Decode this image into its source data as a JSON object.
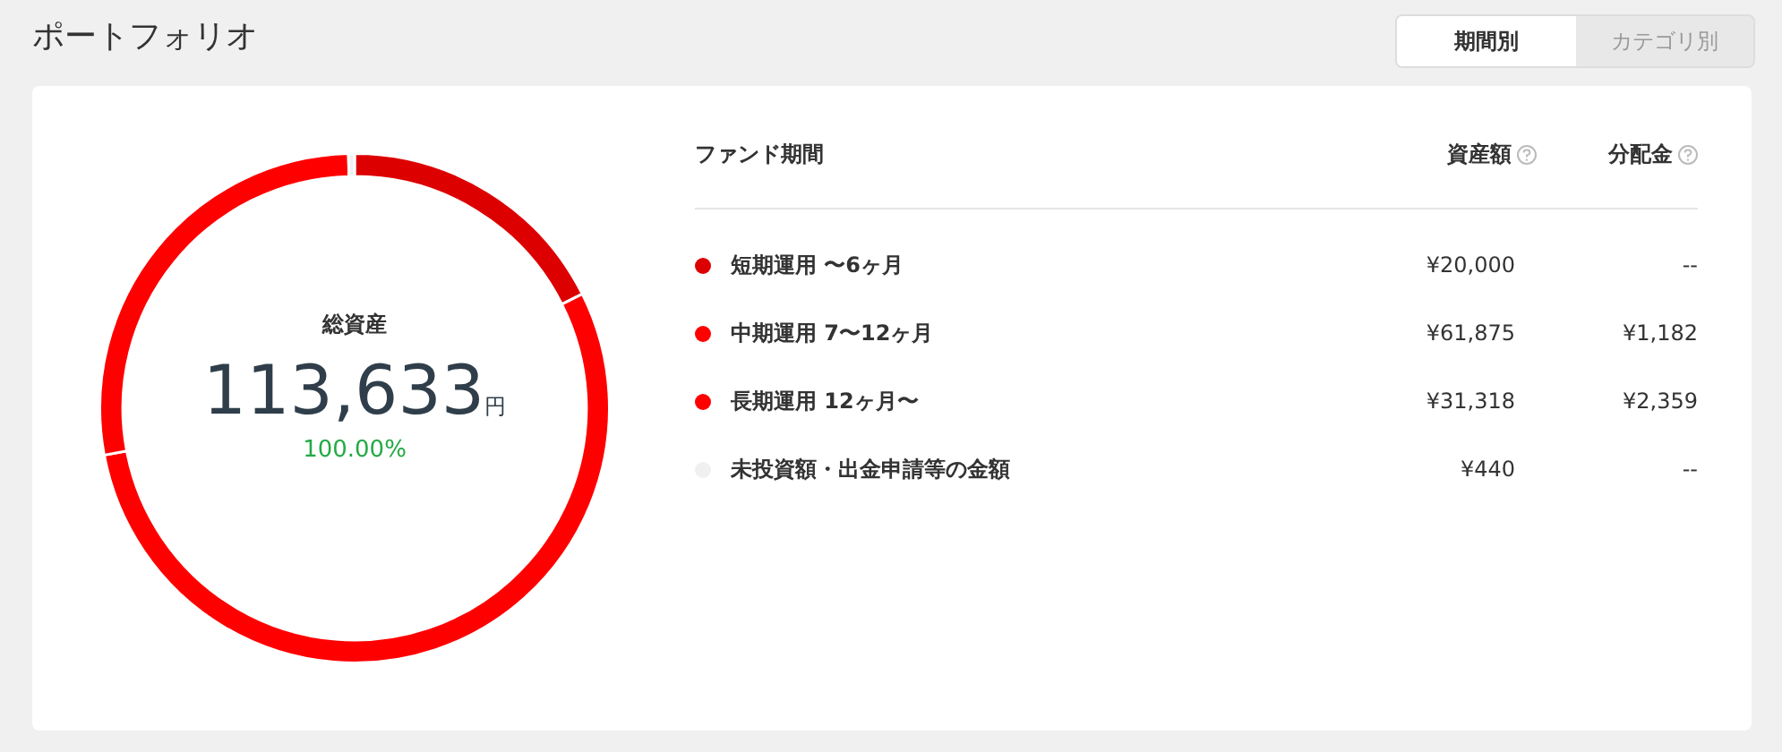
{
  "chart_data": {
    "type": "donut",
    "title": "ポートフォリオ",
    "legend_title": "ファンド期間",
    "categories": [
      "短期運用 〜6ヶ月",
      "中期運用 7〜12ヶ月",
      "長期運用 12ヶ月〜",
      "未投資額・出金申請等の金額"
    ],
    "values": [
      20000,
      61875,
      31318,
      440
    ],
    "value_labels": [
      "¥20,000",
      "¥61,875",
      "¥31,318",
      "¥440"
    ],
    "colors": [
      "#dd0000",
      "#ff0000",
      "#ff0000",
      "#f0f0f0"
    ],
    "legend": "right",
    "annotations": [
      "期間別",
      "カテゴリ別",
      "資産額",
      "分配金",
      "総資産",
      "113,633円",
      "100.00%",
      "--",
      "¥1,182",
      "¥2,359",
      "--"
    ]
  }
}
